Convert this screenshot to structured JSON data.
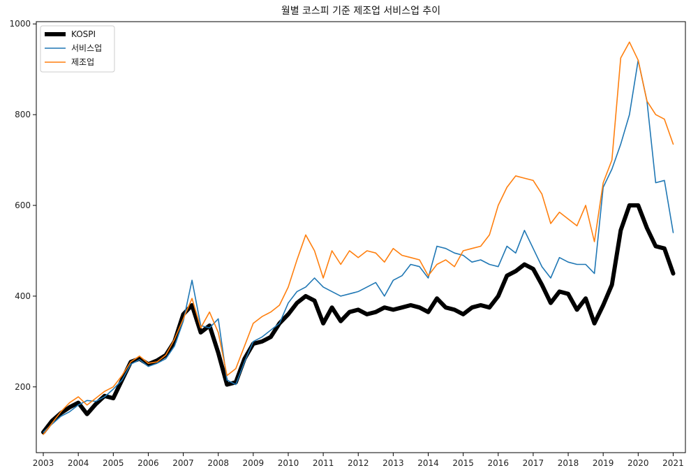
{
  "chart_data": {
    "type": "line",
    "title": "월별 코스피 기준 제조업 서비스업 추이",
    "xlabel": "",
    "ylabel": "",
    "xlim": [
      2002.8,
      2021.35
    ],
    "ylim": [
      55,
      1005
    ],
    "x_ticks": [
      2003,
      2004,
      2005,
      2006,
      2007,
      2008,
      2009,
      2010,
      2011,
      2012,
      2013,
      2014,
      2015,
      2016,
      2017,
      2018,
      2019,
      2020,
      2021
    ],
    "x_tick_labels": [
      "2003",
      "2004",
      "2005",
      "2006",
      "2007",
      "2008",
      "2009",
      "2010",
      "2011",
      "2012",
      "2013",
      "2014",
      "2015",
      "2016",
      "2017",
      "2018",
      "2019",
      "2020",
      "2021"
    ],
    "y_ticks": [
      200,
      400,
      600,
      800,
      1000
    ],
    "y_tick_labels": [
      "200",
      "400",
      "600",
      "800",
      "1000"
    ],
    "grid": false,
    "legend_position": "top-left",
    "series": [
      {
        "name": "KOSPI",
        "color": "#000000",
        "x": [
          2003.0,
          2003.25,
          2003.5,
          2003.75,
          2004.0,
          2004.25,
          2004.5,
          2004.75,
          2005.0,
          2005.25,
          2005.5,
          2005.75,
          2006.0,
          2006.25,
          2006.5,
          2006.75,
          2007.0,
          2007.25,
          2007.5,
          2007.75,
          2008.0,
          2008.25,
          2008.5,
          2008.75,
          2009.0,
          2009.25,
          2009.5,
          2009.75,
          2010.0,
          2010.25,
          2010.5,
          2010.75,
          2011.0,
          2011.25,
          2011.5,
          2011.75,
          2012.0,
          2012.25,
          2012.5,
          2012.75,
          2013.0,
          2013.25,
          2013.5,
          2013.75,
          2014.0,
          2014.25,
          2014.5,
          2014.75,
          2015.0,
          2015.25,
          2015.5,
          2015.75,
          2016.0,
          2016.25,
          2016.5,
          2016.75,
          2017.0,
          2017.25,
          2017.5,
          2017.75,
          2018.0,
          2018.25,
          2018.5,
          2018.75,
          2019.0,
          2019.25,
          2019.5,
          2019.75,
          2020.0,
          2020.25,
          2020.5,
          2020.75,
          2021.0
        ],
        "values": [
          100,
          125,
          142,
          155,
          165,
          140,
          162,
          180,
          175,
          215,
          255,
          262,
          250,
          258,
          270,
          300,
          360,
          380,
          320,
          335,
          275,
          205,
          210,
          262,
          295,
          300,
          310,
          340,
          360,
          385,
          400,
          390,
          340,
          375,
          345,
          365,
          370,
          360,
          365,
          375,
          370,
          375,
          380,
          375,
          365,
          395,
          375,
          370,
          360,
          375,
          380,
          375,
          400,
          445,
          455,
          470,
          460,
          425,
          385,
          410,
          405,
          370,
          395,
          340,
          380,
          425,
          545,
          600,
          600,
          550,
          510,
          505,
          450
        ]
      },
      {
        "name": "서비스업",
        "color": "#1f77b4",
        "x": [
          2003.0,
          2003.25,
          2003.5,
          2003.75,
          2004.0,
          2004.25,
          2004.5,
          2004.75,
          2005.0,
          2005.25,
          2005.5,
          2005.75,
          2006.0,
          2006.25,
          2006.5,
          2006.75,
          2007.0,
          2007.25,
          2007.5,
          2007.75,
          2008.0,
          2008.25,
          2008.5,
          2008.75,
          2009.0,
          2009.25,
          2009.5,
          2009.75,
          2010.0,
          2010.25,
          2010.5,
          2010.75,
          2011.0,
          2011.25,
          2011.5,
          2011.75,
          2012.0,
          2012.25,
          2012.5,
          2012.75,
          2013.0,
          2013.25,
          2013.5,
          2013.75,
          2014.0,
          2014.25,
          2014.5,
          2014.75,
          2015.0,
          2015.25,
          2015.5,
          2015.75,
          2016.0,
          2016.25,
          2016.5,
          2016.75,
          2017.0,
          2017.25,
          2017.5,
          2017.75,
          2018.0,
          2018.25,
          2018.5,
          2018.75,
          2019.0,
          2019.25,
          2019.5,
          2019.75,
          2020.0,
          2020.25,
          2020.5,
          2020.75,
          2021.0
        ],
        "values": [
          100,
          118,
          135,
          145,
          160,
          170,
          168,
          178,
          195,
          215,
          250,
          260,
          245,
          252,
          262,
          290,
          345,
          435,
          335,
          330,
          350,
          215,
          205,
          255,
          300,
          310,
          325,
          340,
          385,
          410,
          420,
          440,
          420,
          410,
          400,
          405,
          410,
          420,
          430,
          400,
          435,
          445,
          470,
          465,
          440,
          510,
          505,
          495,
          490,
          475,
          480,
          470,
          465,
          510,
          495,
          545,
          505,
          465,
          440,
          485,
          475,
          470,
          470,
          450,
          640,
          680,
          735,
          800,
          920,
          830,
          650,
          655,
          540
        ]
      },
      {
        "name": "제조업",
        "color": "#ff7f0e",
        "x": [
          2003.0,
          2003.25,
          2003.5,
          2003.75,
          2004.0,
          2004.25,
          2004.5,
          2004.75,
          2005.0,
          2005.25,
          2005.5,
          2005.75,
          2006.0,
          2006.25,
          2006.5,
          2006.75,
          2007.0,
          2007.25,
          2007.5,
          2007.75,
          2008.0,
          2008.25,
          2008.5,
          2008.75,
          2009.0,
          2009.25,
          2009.5,
          2009.75,
          2010.0,
          2010.25,
          2010.5,
          2010.75,
          2011.0,
          2011.25,
          2011.5,
          2011.75,
          2012.0,
          2012.25,
          2012.5,
          2012.75,
          2013.0,
          2013.25,
          2013.5,
          2013.75,
          2014.0,
          2014.25,
          2014.5,
          2014.75,
          2015.0,
          2015.25,
          2015.5,
          2015.75,
          2016.0,
          2016.25,
          2016.5,
          2016.75,
          2017.0,
          2017.25,
          2017.5,
          2017.75,
          2018.0,
          2018.25,
          2018.5,
          2018.75,
          2019.0,
          2019.25,
          2019.5,
          2019.75,
          2020.0,
          2020.25,
          2020.5,
          2020.75,
          2021.0
        ],
        "values": [
          95,
          120,
          145,
          165,
          178,
          160,
          175,
          190,
          200,
          225,
          255,
          268,
          252,
          255,
          270,
          305,
          350,
          395,
          330,
          365,
          320,
          225,
          240,
          290,
          340,
          355,
          365,
          380,
          420,
          480,
          535,
          500,
          440,
          500,
          470,
          500,
          485,
          500,
          495,
          475,
          505,
          490,
          485,
          480,
          445,
          470,
          480,
          465,
          500,
          505,
          510,
          535,
          600,
          640,
          665,
          660,
          655,
          625,
          560,
          585,
          570,
          555,
          600,
          520,
          650,
          700,
          925,
          960,
          920,
          830,
          800,
          790,
          735
        ]
      }
    ]
  }
}
